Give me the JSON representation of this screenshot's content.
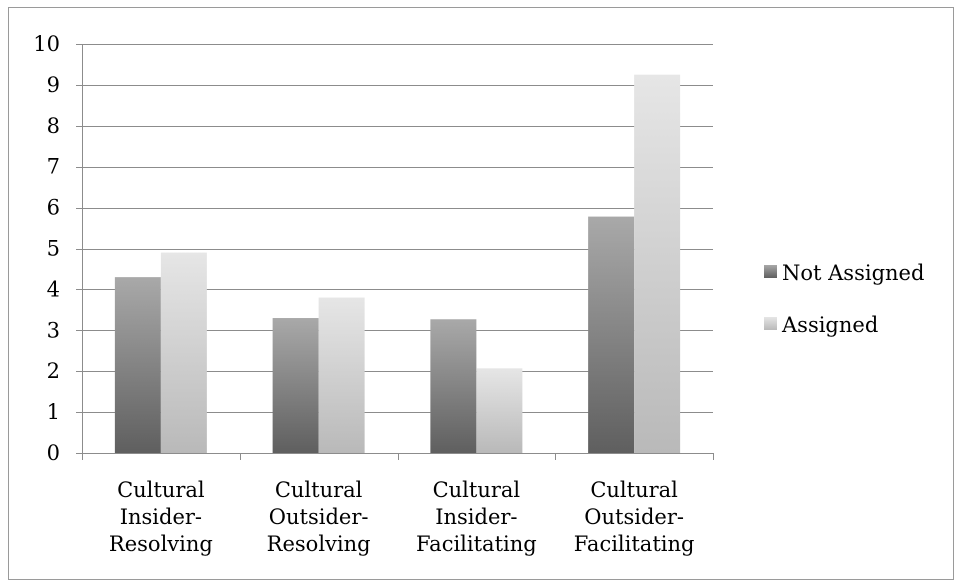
{
  "chart_data": {
    "type": "bar",
    "title": "",
    "xlabel": "",
    "ylabel": "",
    "ylim": [
      0,
      10
    ],
    "yticks": [
      "0",
      "1",
      "2",
      "3",
      "4",
      "5",
      "6",
      "7",
      "8",
      "9",
      "10"
    ],
    "grid": true,
    "legend_position": "right",
    "categories": [
      [
        "Cultural",
        "Insider-",
        "Resolving"
      ],
      [
        "Cultural",
        "Outsider-",
        "Resolving"
      ],
      [
        "Cultural",
        "Insider-",
        "Facilitating"
      ],
      [
        "Cultural",
        "Outsider-",
        "Facilitating"
      ]
    ],
    "series": [
      {
        "name": "Not Assigned",
        "values": [
          4.3,
          3.3,
          3.27,
          5.78
        ],
        "color_top": "#a9a9a9",
        "color_bottom": "#5f5f5f"
      },
      {
        "name": "Assigned",
        "values": [
          4.9,
          3.8,
          2.07,
          9.25
        ],
        "color_top": "#e6e6e6",
        "color_bottom": "#b9b9b9"
      }
    ]
  }
}
